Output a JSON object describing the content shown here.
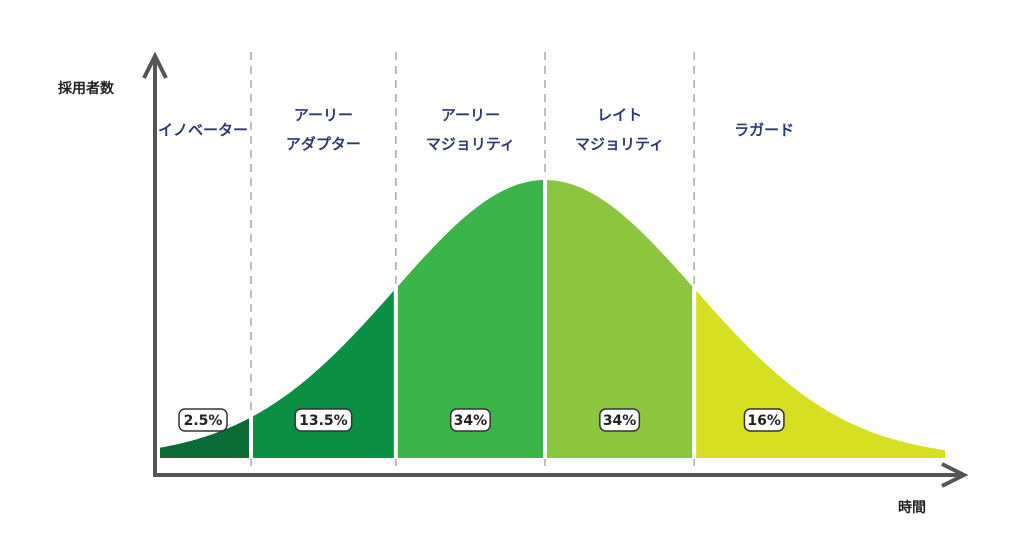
{
  "chart_data": {
    "type": "bell",
    "y_label": "採用者数",
    "x_label": "時間",
    "categories": [
      "イノベーター",
      "アーリー\nアダプター",
      "アーリー\nマジョリティ",
      "レイト\nマジョリティ",
      "ラガード"
    ],
    "values": [
      2.5,
      13.5,
      34,
      34,
      16
    ],
    "value_labels": [
      "2.5%",
      "13.5%",
      "34%",
      "34%",
      "16%"
    ],
    "colors": [
      "#0b6b35",
      "#0a8f43",
      "#3bb44a",
      "#8cc63f",
      "#d7df23"
    ]
  }
}
